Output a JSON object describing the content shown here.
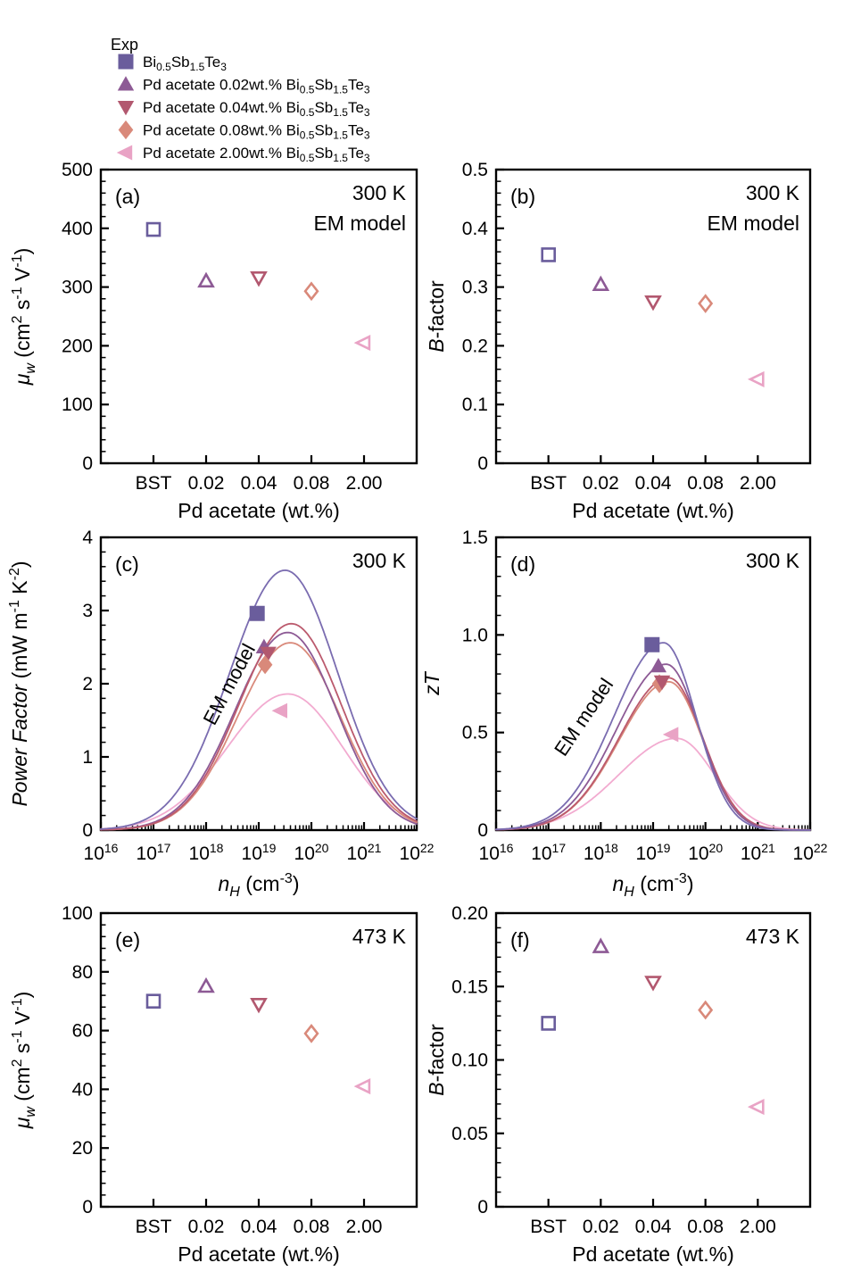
{
  "colors": {
    "axis": "#000000",
    "text": "#000000",
    "background": "#ffffff"
  },
  "legend": {
    "title": "Exp"
  },
  "series": [
    {
      "key": "BST",
      "label": "Bi_{0.5}Sb_{1.5}Te_{3}",
      "marker": "square",
      "color": "#6a5d9c",
      "curve_color": "#7a6cb0"
    },
    {
      "key": "0.02",
      "label": "Pd acetate 0.02wt.% Bi_{0.5}Sb_{1.5}Te_{3}",
      "marker": "triangle-up",
      "color": "#8d5a95",
      "curve_color": "#8d5a95"
    },
    {
      "key": "0.04",
      "label": "Pd acetate 0.04wt.% Bi_{0.5}Sb_{1.5}Te_{3}",
      "marker": "triangle-down",
      "color": "#b2586f",
      "curve_color": "#bb5a6d"
    },
    {
      "key": "0.08",
      "label": "Pd acetate 0.08wt.% Bi_{0.5}Sb_{1.5}Te_{3}",
      "marker": "diamond",
      "color": "#d9897a",
      "curve_color": "#d9897a"
    },
    {
      "key": "2.00",
      "label": "Pd acetate 2.00wt.% Bi_{0.5}Sb_{1.5}Te_{3}",
      "marker": "triangle-left",
      "color": "#e9a3c5",
      "curve_color": "#f2abd0"
    }
  ],
  "chart_data": [
    {
      "panel": "a",
      "panel_label": "(a)",
      "type": "scatter",
      "corner_lines": [
        "300 K",
        "EM model"
      ],
      "categories": [
        "BST",
        "0.02",
        "0.04",
        "0.08",
        "2.00"
      ],
      "xlabel": "Pd acetate (wt.%)",
      "ylabel": "*μ*_{*w*} (cm^{2} s^{-1} V^{-1})",
      "ylim": [
        0,
        500
      ],
      "yticks": [
        0,
        100,
        200,
        300,
        400,
        500
      ],
      "ytick_labels": [
        "0",
        "100",
        "200",
        "300",
        "400",
        "500"
      ],
      "values": [
        398,
        310,
        316,
        293,
        205
      ],
      "marker_mode": "open"
    },
    {
      "panel": "b",
      "panel_label": "(b)",
      "type": "scatter",
      "corner_lines": [
        "300 K",
        "EM model"
      ],
      "categories": [
        "BST",
        "0.02",
        "0.04",
        "0.08",
        "2.00"
      ],
      "xlabel": "Pd acetate (wt.%)",
      "ylabel": "*B*-factor",
      "ylim": [
        0,
        0.5
      ],
      "yticks": [
        0,
        0.1,
        0.2,
        0.3,
        0.4,
        0.5
      ],
      "ytick_labels": [
        "0",
        "0.1",
        "0.2",
        "0.3",
        "0.4",
        "0.5"
      ],
      "values": [
        0.355,
        0.304,
        0.275,
        0.272,
        0.143
      ],
      "marker_mode": "open"
    },
    {
      "panel": "c",
      "panel_label": "(c)",
      "type": "line-log",
      "corner_lines": [
        "300 K"
      ],
      "xlabel": "*n*_{*H*} (cm^{-3})",
      "ylabel": "*Power Factor* (mW m^{-1} K^{-2})",
      "x_decades": [
        16,
        22
      ],
      "ylim": [
        0,
        4
      ],
      "yticks": [
        0,
        1,
        2,
        3,
        4
      ],
      "ytick_labels": [
        "0",
        "1",
        "2",
        "3",
        "4"
      ],
      "annotation": {
        "text": "EM model",
        "x_log": 18.55,
        "y": 1.95,
        "rotate_deg": -62
      },
      "curves": [
        {
          "series": 4,
          "peak": 1.86,
          "peak_x_log": 19.55,
          "sigma_left": 1.15,
          "sigma_right": 1.05
        },
        {
          "series": 3,
          "peak": 2.56,
          "peak_x_log": 19.6,
          "sigma_left": 1.0,
          "sigma_right": 0.95
        },
        {
          "series": 1,
          "peak": 2.7,
          "peak_x_log": 19.55,
          "sigma_left": 1.0,
          "sigma_right": 0.93
        },
        {
          "series": 2,
          "peak": 2.82,
          "peak_x_log": 19.62,
          "sigma_left": 1.0,
          "sigma_right": 0.95
        },
        {
          "series": 0,
          "peak": 3.55,
          "peak_x_log": 19.5,
          "sigma_left": 1.05,
          "sigma_right": 1.0
        }
      ],
      "points": [
        {
          "series": 0,
          "x_log": 18.97,
          "y": 2.96
        },
        {
          "series": 1,
          "x_log": 19.1,
          "y": 2.5
        },
        {
          "series": 2,
          "x_log": 19.18,
          "y": 2.42
        },
        {
          "series": 3,
          "x_log": 19.12,
          "y": 2.26
        },
        {
          "series": 4,
          "x_log": 19.42,
          "y": 1.63
        }
      ],
      "marker_mode": "filled"
    },
    {
      "panel": "d",
      "panel_label": "(d)",
      "type": "line-log",
      "corner_lines": [
        "300 K"
      ],
      "xlabel": "*n*_{*H*} (cm^{-3})",
      "ylabel": "*zT*",
      "x_decades": [
        16,
        22
      ],
      "ylim": [
        0,
        1.5
      ],
      "yticks": [
        0,
        0.5,
        1.0,
        1.5
      ],
      "ytick_labels": [
        "0",
        "0.5",
        "1.0",
        "1.5"
      ],
      "annotation": {
        "text": "EM model",
        "x_log": 17.78,
        "y": 0.56,
        "rotate_deg": -56
      },
      "curves": [
        {
          "series": 4,
          "peak": 0.47,
          "peak_x_log": 19.45,
          "sigma_left": 1.1,
          "sigma_right": 0.72
        },
        {
          "series": 3,
          "peak": 0.76,
          "peak_x_log": 19.3,
          "sigma_left": 0.95,
          "sigma_right": 0.65
        },
        {
          "series": 2,
          "peak": 0.78,
          "peak_x_log": 19.3,
          "sigma_left": 0.95,
          "sigma_right": 0.65
        },
        {
          "series": 1,
          "peak": 0.85,
          "peak_x_log": 19.25,
          "sigma_left": 0.95,
          "sigma_right": 0.64
        },
        {
          "series": 0,
          "peak": 0.96,
          "peak_x_log": 19.2,
          "sigma_left": 0.95,
          "sigma_right": 0.62
        }
      ],
      "points": [
        {
          "series": 0,
          "x_log": 18.98,
          "y": 0.95
        },
        {
          "series": 1,
          "x_log": 19.1,
          "y": 0.84
        },
        {
          "series": 3,
          "x_log": 19.12,
          "y": 0.75
        },
        {
          "series": 2,
          "x_log": 19.17,
          "y": 0.76
        },
        {
          "series": 4,
          "x_log": 19.36,
          "y": 0.49
        }
      ],
      "marker_mode": "filled"
    },
    {
      "panel": "e",
      "panel_label": "(e)",
      "type": "scatter",
      "corner_lines": [
        "473 K"
      ],
      "categories": [
        "BST",
        "0.02",
        "0.04",
        "0.08",
        "2.00"
      ],
      "xlabel": "Pd acetate (wt.%)",
      "ylabel": "*μ*_{*w*} (cm^{2} s^{-1} V^{-1})",
      "ylim": [
        0,
        100
      ],
      "yticks": [
        0,
        20,
        40,
        60,
        80,
        100
      ],
      "ytick_labels": [
        "0",
        "20",
        "40",
        "60",
        "80",
        "100"
      ],
      "values": [
        70,
        75,
        69,
        59,
        41
      ],
      "marker_mode": "open"
    },
    {
      "panel": "f",
      "panel_label": "(f)",
      "type": "scatter",
      "corner_lines": [
        "473 K"
      ],
      "categories": [
        "BST",
        "0.02",
        "0.04",
        "0.08",
        "2.00"
      ],
      "xlabel": "Pd acetate (wt.%)",
      "ylabel": "*B*-factor",
      "ylim": [
        0,
        0.2
      ],
      "yticks": [
        0,
        0.05,
        0.1,
        0.15,
        0.2
      ],
      "ytick_labels": [
        "0",
        "0.05",
        "0.10",
        "0.15",
        "0.20"
      ],
      "values": [
        0.125,
        0.177,
        0.153,
        0.134,
        0.068
      ],
      "marker_mode": "open"
    }
  ]
}
